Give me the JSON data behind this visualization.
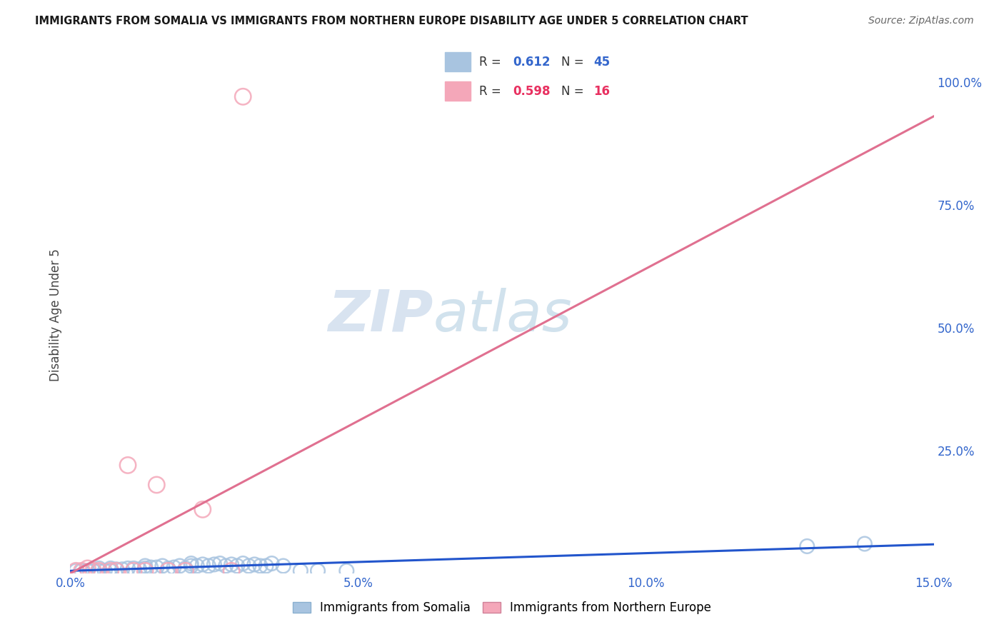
{
  "title": "IMMIGRANTS FROM SOMALIA VS IMMIGRANTS FROM NORTHERN EUROPE DISABILITY AGE UNDER 5 CORRELATION CHART",
  "source": "Source: ZipAtlas.com",
  "ylabel": "Disability Age Under 5",
  "xlim": [
    0.0,
    0.15
  ],
  "ylim": [
    0.0,
    1.05
  ],
  "xticks": [
    0.0,
    0.05,
    0.1,
    0.15
  ],
  "xtick_labels": [
    "0.0%",
    "5.0%",
    "10.0%",
    "15.0%"
  ],
  "yticks_right": [
    0.25,
    0.5,
    0.75,
    1.0
  ],
  "ytick_labels_right": [
    "25.0%",
    "50.0%",
    "75.0%",
    "100.0%"
  ],
  "somalia_color": "#a8c4e0",
  "northern_europe_color": "#f4a7b9",
  "somalia_line_color": "#2255cc",
  "northern_europe_line_color": "#e07090",
  "watermark_zip": "ZIP",
  "watermark_atlas": "atlas",
  "somalia_x": [
    0.001,
    0.002,
    0.003,
    0.004,
    0.005,
    0.005,
    0.006,
    0.007,
    0.007,
    0.008,
    0.009,
    0.01,
    0.011,
    0.012,
    0.013,
    0.013,
    0.014,
    0.015,
    0.016,
    0.017,
    0.018,
    0.019,
    0.02,
    0.021,
    0.021,
    0.022,
    0.023,
    0.024,
    0.025,
    0.026,
    0.027,
    0.028,
    0.029,
    0.03,
    0.031,
    0.032,
    0.033,
    0.034,
    0.035,
    0.037,
    0.04,
    0.043,
    0.048,
    0.128,
    0.138
  ],
  "somalia_y": [
    0.005,
    0.005,
    0.005,
    0.005,
    0.005,
    0.01,
    0.005,
    0.01,
    0.005,
    0.008,
    0.008,
    0.01,
    0.01,
    0.008,
    0.01,
    0.015,
    0.012,
    0.012,
    0.015,
    0.01,
    0.012,
    0.015,
    0.01,
    0.015,
    0.02,
    0.015,
    0.018,
    0.015,
    0.018,
    0.02,
    0.015,
    0.018,
    0.015,
    0.02,
    0.015,
    0.018,
    0.015,
    0.015,
    0.02,
    0.015,
    0.005,
    0.005,
    0.005,
    0.055,
    0.06
  ],
  "northern_europe_x": [
    0.001,
    0.002,
    0.003,
    0.004,
    0.005,
    0.007,
    0.008,
    0.01,
    0.011,
    0.013,
    0.015,
    0.017,
    0.02,
    0.023,
    0.028,
    0.03
  ],
  "northern_europe_y": [
    0.005,
    0.005,
    0.01,
    0.005,
    0.005,
    0.005,
    0.005,
    0.22,
    0.005,
    0.005,
    0.18,
    0.005,
    0.005,
    0.13,
    0.005,
    0.97
  ]
}
